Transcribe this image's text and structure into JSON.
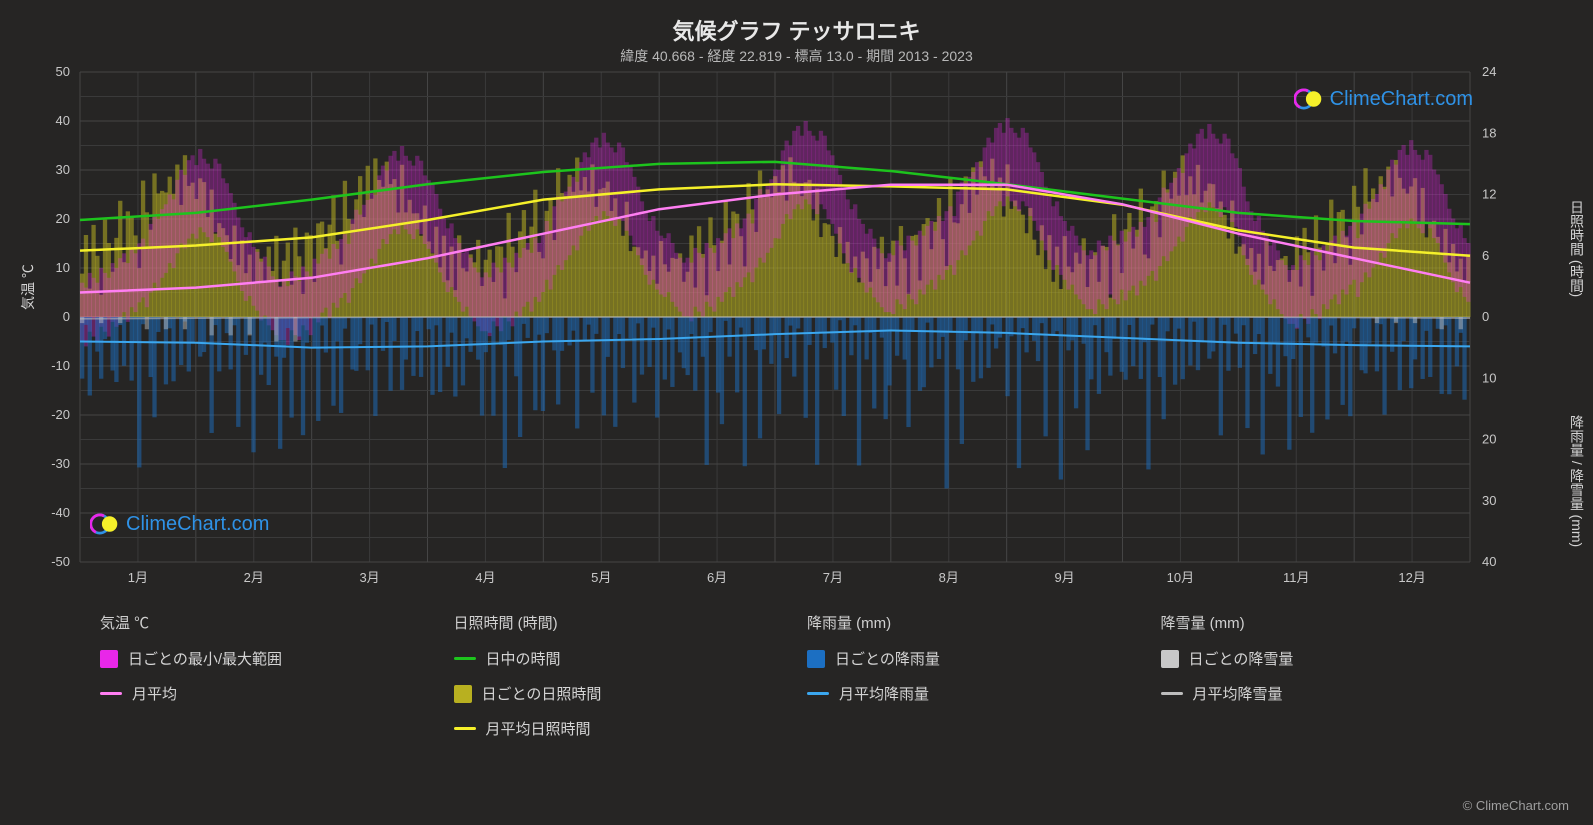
{
  "title": "気候グラフ テッサロニキ",
  "subtitle": "緯度 40.668 - 経度 22.819 - 標高 13.0 - 期間 2013 - 2023",
  "credit": "© ClimeChart.com",
  "logo_text": "ClimeChart.com",
  "axes": {
    "x_months": [
      "1月",
      "2月",
      "3月",
      "4月",
      "5月",
      "6月",
      "7月",
      "8月",
      "9月",
      "10月",
      "11月",
      "12月"
    ],
    "y_left_label": "気温 ℃",
    "y_left": {
      "min": -50,
      "max": 50,
      "step": 10
    },
    "y_right_top_label": "日照時間 (時間)",
    "y_right_top": {
      "min": 0,
      "max": 24,
      "step": 6,
      "mapped_temp_min": 0,
      "mapped_temp_max": 50
    },
    "y_right_bottom_label": "降雨量 / 降雪量 (mm)",
    "y_right_bottom": {
      "min": 0,
      "max": 40,
      "step": 10,
      "mapped_temp_min": 0,
      "mapped_temp_max": -50
    }
  },
  "colors": {
    "bg": "#262524",
    "grid_major": "#454545",
    "grid_minor": "#3a3a3a",
    "text": "#d4d4d4",
    "temp_range": "#e827e8",
    "temp_mean": "#ff7ef2",
    "daylight": "#1dc41d",
    "sunshine_daily": "#b8b020",
    "sunshine_mean": "#f5f02a",
    "rain_daily": "#1c6fc2",
    "rain_mean": "#3ba7ef",
    "snow_daily": "#c8c8c8",
    "snow_mean": "#bdbdbd",
    "logo_text": "#2f92e6"
  },
  "series": {
    "daylight_hours": [
      9.5,
      10.2,
      11.5,
      13.0,
      14.2,
      15.0,
      15.2,
      14.3,
      13.0,
      11.6,
      10.2,
      9.4,
      9.1
    ],
    "sunshine_mean_hours": [
      6.5,
      7.0,
      7.8,
      9.5,
      11.5,
      12.5,
      13.0,
      12.8,
      12.5,
      11.0,
      8.5,
      6.8,
      6.0
    ],
    "temp_mean_c": [
      5,
      6,
      8,
      12,
      17,
      22,
      25,
      27,
      27,
      23,
      17,
      12,
      7
    ],
    "temp_min_glow_c": [
      0,
      1,
      2,
      6,
      11,
      16,
      19,
      21,
      21,
      17,
      11,
      6,
      2
    ],
    "temp_max_glow_c": [
      11,
      12,
      14,
      19,
      24,
      29,
      32,
      34,
      34,
      30,
      23,
      17,
      12
    ],
    "rain_mean_mm": [
      4.0,
      4.2,
      5.0,
      4.8,
      4.0,
      3.6,
      2.8,
      2.2,
      2.6,
      3.4,
      4.2,
      4.6,
      4.8
    ],
    "snow_mean_mm": [
      0.3,
      0.2,
      0.1,
      0,
      0,
      0,
      0,
      0,
      0,
      0,
      0,
      0.1,
      0.2
    ],
    "rain_daily_sample_mm": [
      8,
      2,
      12,
      0,
      5,
      18,
      3,
      0,
      9,
      14,
      1,
      6,
      0,
      11,
      3,
      20,
      2,
      0,
      7,
      15,
      4,
      0,
      8,
      2,
      13,
      0,
      6,
      1,
      9,
      3,
      0,
      12,
      5,
      0,
      18,
      2,
      7,
      0,
      3,
      10,
      1,
      14,
      0,
      6,
      2,
      19,
      0,
      8,
      3,
      11,
      0,
      5,
      16
    ],
    "sunshine_daily_sample_h": [
      5,
      7,
      3,
      8,
      6,
      2,
      9,
      7,
      4,
      8,
      10,
      6,
      9,
      11,
      7,
      5,
      12,
      10,
      8,
      13,
      12,
      11,
      13,
      12,
      14,
      13,
      12,
      14,
      13,
      12,
      11,
      13,
      12,
      10,
      11,
      9,
      8,
      10,
      7,
      6,
      8,
      5,
      7,
      4,
      6,
      3,
      7,
      5,
      4,
      6,
      5,
      7,
      3
    ],
    "temp_daily_minmax_sample_c": [
      [
        0,
        10
      ],
      [
        -1,
        9
      ],
      [
        2,
        12
      ],
      [
        1,
        11
      ],
      [
        0,
        10
      ],
      [
        3,
        13
      ],
      [
        2,
        12
      ],
      [
        1,
        11
      ],
      [
        4,
        14
      ],
      [
        3,
        13
      ],
      [
        5,
        15
      ],
      [
        6,
        16
      ],
      [
        4,
        14
      ],
      [
        7,
        17
      ],
      [
        6,
        16
      ],
      [
        8,
        18
      ],
      [
        9,
        19
      ],
      [
        7,
        17
      ],
      [
        10,
        22
      ],
      [
        12,
        24
      ],
      [
        11,
        23
      ],
      [
        13,
        25
      ],
      [
        14,
        26
      ],
      [
        16,
        28
      ],
      [
        15,
        27
      ],
      [
        18,
        31
      ],
      [
        20,
        33
      ],
      [
        19,
        32
      ],
      [
        21,
        35
      ],
      [
        22,
        36
      ],
      [
        21,
        34
      ],
      [
        23,
        37
      ],
      [
        22,
        35
      ],
      [
        21,
        34
      ],
      [
        20,
        33
      ],
      [
        22,
        35
      ],
      [
        21,
        34
      ],
      [
        19,
        31
      ],
      [
        18,
        30
      ],
      [
        16,
        28
      ],
      [
        14,
        26
      ],
      [
        12,
        23
      ],
      [
        10,
        21
      ],
      [
        8,
        19
      ],
      [
        9,
        20
      ],
      [
        7,
        17
      ],
      [
        6,
        16
      ],
      [
        4,
        14
      ],
      [
        5,
        15
      ],
      [
        3,
        13
      ],
      [
        2,
        11
      ],
      [
        1,
        10
      ],
      [
        0,
        9
      ]
    ]
  },
  "legend": {
    "groups": [
      {
        "title": "気温 ℃",
        "items": [
          {
            "kind": "box",
            "color": "#e827e8",
            "label": "日ごとの最小/最大範囲"
          },
          {
            "kind": "line",
            "color": "#ff7ef2",
            "label": "月平均"
          }
        ]
      },
      {
        "title": "日照時間 (時間)",
        "items": [
          {
            "kind": "line",
            "color": "#1dc41d",
            "label": "日中の時間"
          },
          {
            "kind": "box",
            "color": "#b8b020",
            "label": "日ごとの日照時間"
          },
          {
            "kind": "line",
            "color": "#f5f02a",
            "label": "月平均日照時間"
          }
        ]
      },
      {
        "title": "降雨量 (mm)",
        "items": [
          {
            "kind": "box",
            "color": "#1c6fc2",
            "label": "日ごとの降雨量"
          },
          {
            "kind": "line",
            "color": "#3ba7ef",
            "label": "月平均降雨量"
          }
        ]
      },
      {
        "title": "降雪量 (mm)",
        "items": [
          {
            "kind": "box",
            "color": "#c8c8c8",
            "label": "日ごとの降雪量"
          },
          {
            "kind": "line",
            "color": "#bdbdbd",
            "label": "月平均降雪量"
          }
        ]
      }
    ]
  }
}
